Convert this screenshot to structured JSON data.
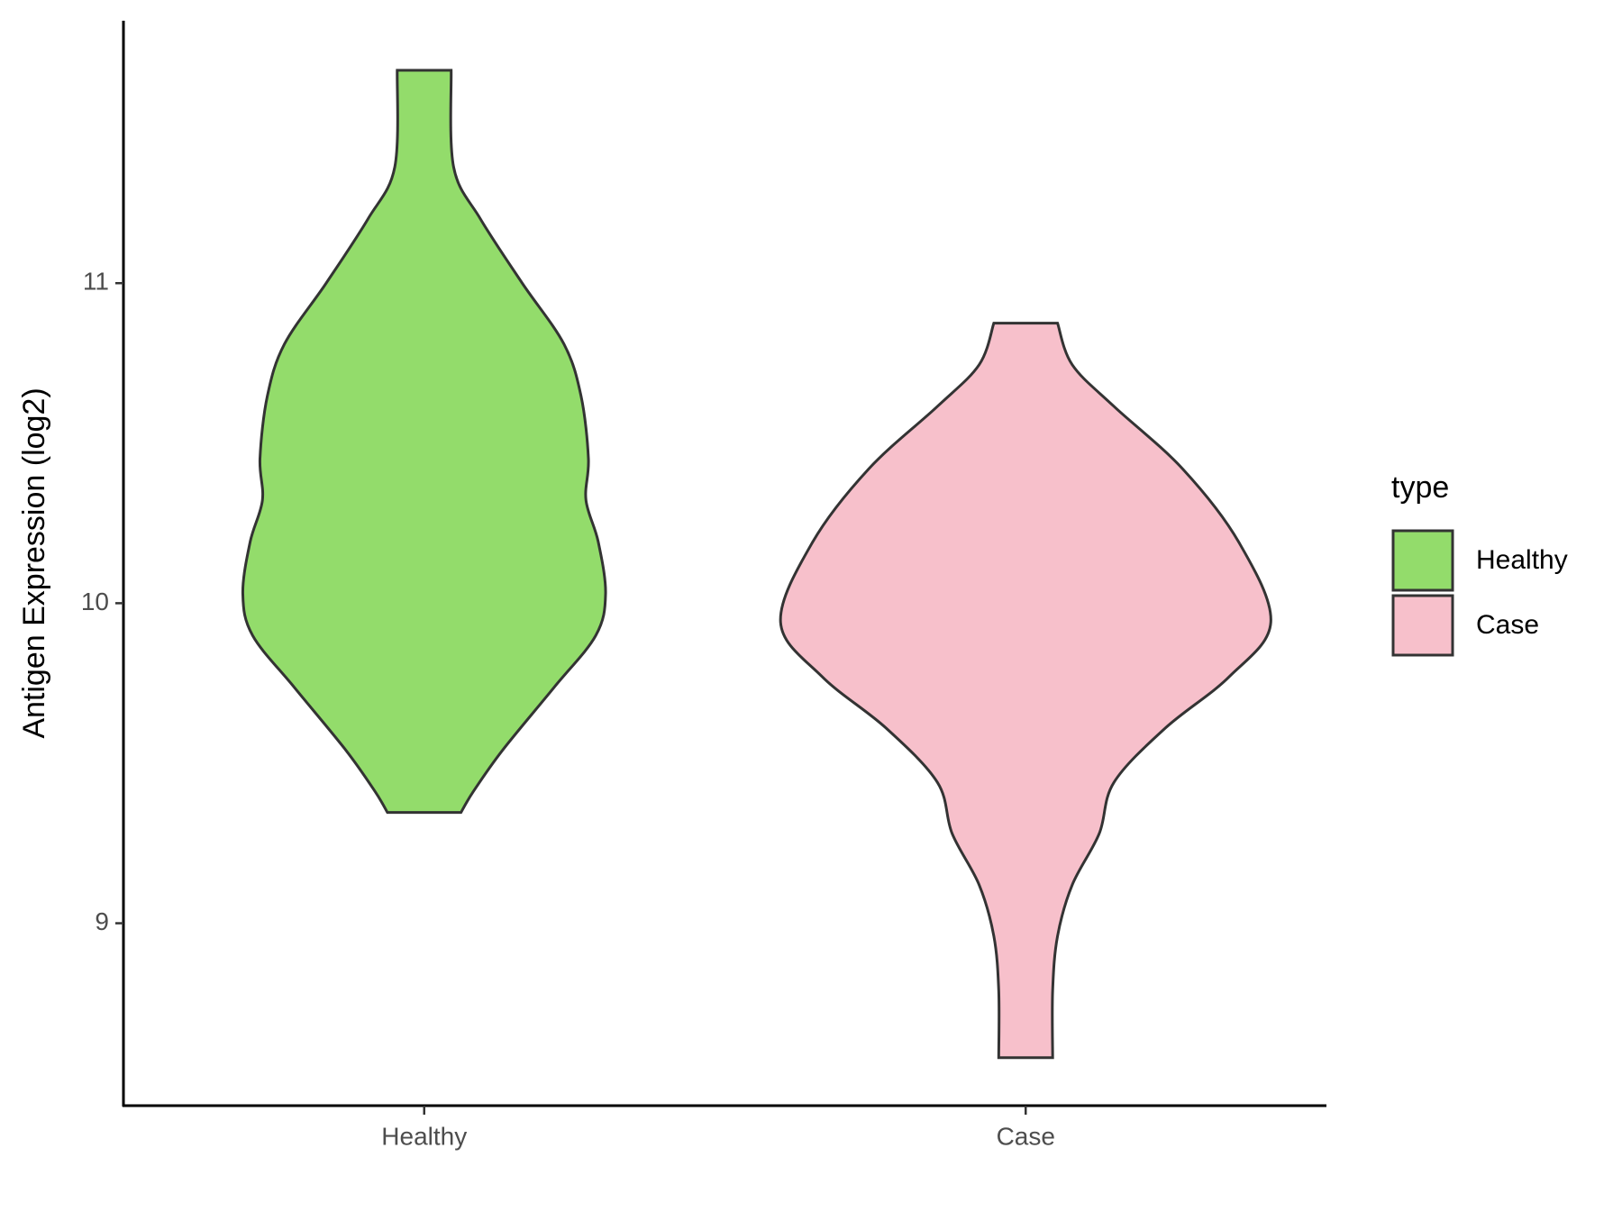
{
  "chart_data": {
    "type": "violin",
    "ylabel": "Antigen Expression (log2)",
    "categories": [
      "Healthy",
      "Case"
    ],
    "ylim": [
      8.43,
      11.82
    ],
    "yticks": [
      9,
      10,
      11
    ],
    "legend_title": "type",
    "legend": "right",
    "series": [
      {
        "name": "Healthy",
        "color": "#93dc6b",
        "y": [
          11.665,
          11.363,
          11.2,
          11.0,
          10.81,
          10.647,
          10.452,
          10.322,
          10.192,
          10.029,
          9.899,
          9.737,
          9.541,
          9.411,
          9.346
        ],
        "density": [
          0.11,
          0.12,
          0.23,
          0.4,
          0.57,
          0.64,
          0.67,
          0.66,
          0.71,
          0.74,
          0.7,
          0.53,
          0.32,
          0.2,
          0.15
        ]
      },
      {
        "name": "Case",
        "color": "#f7c0cb",
        "y": [
          10.875,
          10.745,
          10.615,
          10.42,
          10.19,
          9.94,
          9.77,
          9.61,
          9.44,
          9.28,
          9.12,
          8.96,
          8.79,
          8.58
        ],
        "density": [
          0.13,
          0.19,
          0.36,
          0.64,
          0.87,
          1.0,
          0.83,
          0.57,
          0.36,
          0.3,
          0.19,
          0.13,
          0.11,
          0.11
        ]
      }
    ]
  }
}
